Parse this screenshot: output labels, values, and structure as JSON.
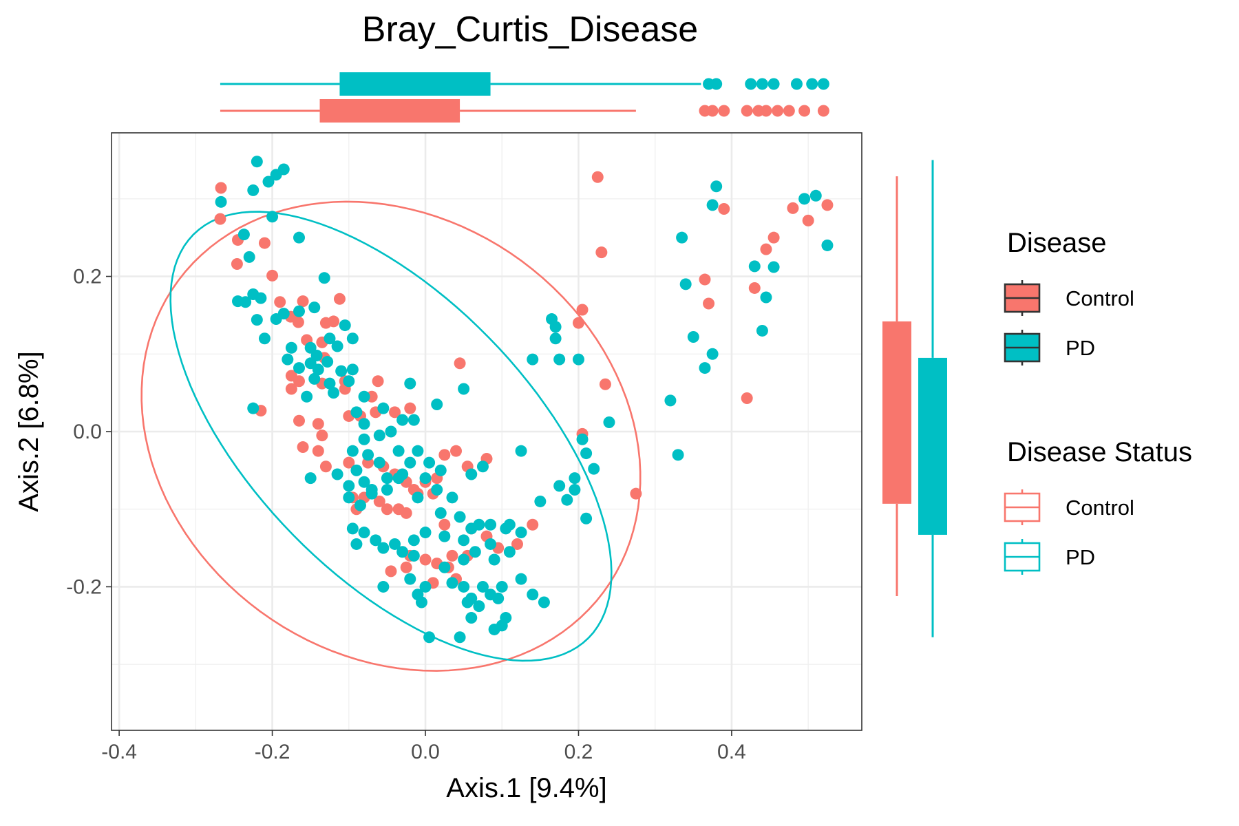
{
  "chart_data": {
    "type": "scatter",
    "title": "Bray_Curtis_Disease",
    "xlabel": "Axis.1   [9.4%]",
    "ylabel": "Axis.2   [6.8%]",
    "xlim": [
      -0.41,
      0.57
    ],
    "ylim": [
      -0.385,
      0.385
    ],
    "x_ticks": [
      -0.4,
      -0.2,
      0.0,
      0.2,
      0.4
    ],
    "x_tick_labels": [
      "-0.4",
      "-0.2",
      "0.0",
      "0.2",
      "0.4"
    ],
    "y_ticks": [
      -0.2,
      0.0,
      0.2
    ],
    "y_tick_labels": [
      "-0.2",
      "0.0",
      "0.2"
    ],
    "grid": true,
    "legend_position": "right",
    "legends": [
      {
        "title": "Disease",
        "style": "filled",
        "entries": [
          "Control",
          "PD"
        ]
      },
      {
        "title": "Disease Status",
        "style": "outline",
        "entries": [
          "Control",
          "PD"
        ]
      }
    ],
    "colors": {
      "Control": "#F8766D",
      "PD": "#00BFC4"
    },
    "series": [
      {
        "name": "Control",
        "color": "#F8766D",
        "points": [
          [
            -0.267,
            0.314
          ],
          [
            -0.268,
            0.274
          ],
          [
            -0.245,
            0.247
          ],
          [
            -0.246,
            0.216
          ],
          [
            -0.21,
            0.243
          ],
          [
            -0.2,
            0.201
          ],
          [
            -0.19,
            0.167
          ],
          [
            -0.16,
            0.168
          ],
          [
            -0.112,
            0.171
          ],
          [
            -0.176,
            0.148
          ],
          [
            -0.166,
            0.141
          ],
          [
            -0.13,
            0.14
          ],
          [
            -0.12,
            0.142
          ],
          [
            -0.155,
            0.118
          ],
          [
            -0.135,
            0.115
          ],
          [
            -0.132,
            0.095
          ],
          [
            -0.175,
            0.072
          ],
          [
            -0.165,
            0.065
          ],
          [
            -0.175,
            0.055
          ],
          [
            -0.135,
            0.062
          ],
          [
            -0.105,
            0.065
          ],
          [
            -0.062,
            0.065
          ],
          [
            -0.105,
            0.055
          ],
          [
            -0.07,
            0.045
          ],
          [
            -0.1,
            0.02
          ],
          [
            -0.085,
            0.02
          ],
          [
            -0.065,
            0.025
          ],
          [
            -0.04,
            0.025
          ],
          [
            -0.02,
            0.03
          ],
          [
            -0.215,
            0.027
          ],
          [
            -0.165,
            0.014
          ],
          [
            -0.14,
            0.01
          ],
          [
            -0.135,
            -0.005
          ],
          [
            -0.16,
            -0.02
          ],
          [
            -0.14,
            -0.025
          ],
          [
            -0.13,
            -0.045
          ],
          [
            -0.1,
            -0.04
          ],
          [
            -0.075,
            -0.04
          ],
          [
            -0.055,
            -0.045
          ],
          [
            -0.04,
            -0.055
          ],
          [
            -0.025,
            -0.065
          ],
          [
            -0.015,
            -0.075
          ],
          [
            0.0,
            -0.065
          ],
          [
            0.015,
            -0.06
          ],
          [
            0.025,
            -0.03
          ],
          [
            0.04,
            -0.025
          ],
          [
            0.055,
            -0.045
          ],
          [
            0.08,
            -0.035
          ],
          [
            -0.095,
            -0.085
          ],
          [
            -0.08,
            -0.085
          ],
          [
            -0.06,
            -0.09
          ],
          [
            -0.05,
            -0.1
          ],
          [
            -0.035,
            -0.1
          ],
          [
            -0.025,
            -0.105
          ],
          [
            -0.01,
            -0.08
          ],
          [
            0.01,
            -0.08
          ],
          [
            -0.09,
            -0.1
          ],
          [
            0.025,
            -0.12
          ],
          [
            0.06,
            -0.125
          ],
          [
            0.08,
            -0.135
          ],
          [
            0.12,
            -0.145
          ],
          [
            0.14,
            -0.12
          ],
          [
            0.095,
            -0.15
          ],
          [
            0.055,
            -0.16
          ],
          [
            0.035,
            -0.16
          ],
          [
            0.015,
            -0.17
          ],
          [
            0.0,
            -0.165
          ],
          [
            -0.02,
            -0.16
          ],
          [
            -0.045,
            -0.18
          ],
          [
            -0.025,
            -0.175
          ],
          [
            0.03,
            -0.175
          ],
          [
            0.01,
            -0.195
          ],
          [
            0.04,
            -0.19
          ],
          [
            0.045,
            0.088
          ],
          [
            0.205,
            0.157
          ],
          [
            0.2,
            0.14
          ],
          [
            0.225,
            0.328
          ],
          [
            0.23,
            0.231
          ],
          [
            0.235,
            0.061
          ],
          [
            0.205,
            -0.003
          ],
          [
            0.275,
            -0.08
          ],
          [
            0.365,
            0.196
          ],
          [
            0.37,
            0.165
          ],
          [
            0.39,
            0.287
          ],
          [
            0.42,
            0.043
          ],
          [
            0.43,
            0.185
          ],
          [
            0.445,
            0.235
          ],
          [
            0.455,
            0.25
          ],
          [
            0.48,
            0.288
          ],
          [
            0.5,
            0.272
          ],
          [
            0.525,
            0.292
          ]
        ]
      },
      {
        "name": "PD",
        "color": "#00BFC4",
        "points": [
          [
            -0.267,
            0.296
          ],
          [
            -0.237,
            0.254
          ],
          [
            -0.225,
            0.311
          ],
          [
            -0.22,
            0.348
          ],
          [
            -0.205,
            0.322
          ],
          [
            -0.195,
            0.331
          ],
          [
            -0.185,
            0.338
          ],
          [
            -0.2,
            0.277
          ],
          [
            -0.165,
            0.25
          ],
          [
            -0.23,
            0.225
          ],
          [
            -0.245,
            0.168
          ],
          [
            -0.235,
            0.167
          ],
          [
            -0.225,
            0.177
          ],
          [
            -0.215,
            0.172
          ],
          [
            -0.22,
            0.144
          ],
          [
            -0.21,
            0.12
          ],
          [
            -0.195,
            0.145
          ],
          [
            -0.185,
            0.152
          ],
          [
            -0.165,
            0.155
          ],
          [
            -0.145,
            0.16
          ],
          [
            -0.132,
            0.198
          ],
          [
            -0.175,
            0.108
          ],
          [
            -0.15,
            0.108
          ],
          [
            -0.142,
            0.098
          ],
          [
            -0.125,
            0.12
          ],
          [
            -0.105,
            0.137
          ],
          [
            -0.095,
            0.12
          ],
          [
            -0.15,
            0.088
          ],
          [
            -0.18,
            0.093
          ],
          [
            -0.165,
            0.082
          ],
          [
            -0.14,
            0.08
          ],
          [
            -0.128,
            0.09
          ],
          [
            -0.115,
            0.11
          ],
          [
            -0.125,
            0.062
          ],
          [
            -0.145,
            0.068
          ],
          [
            -0.155,
            0.045
          ],
          [
            -0.12,
            0.05
          ],
          [
            -0.11,
            0.078
          ],
          [
            -0.095,
            0.08
          ],
          [
            -0.1,
            0.065
          ],
          [
            -0.08,
            0.045
          ],
          [
            -0.09,
            0.025
          ],
          [
            -0.225,
            0.03
          ],
          [
            -0.08,
            0.01
          ],
          [
            -0.055,
            0.03
          ],
          [
            -0.03,
            0.015
          ],
          [
            -0.015,
            0.015
          ],
          [
            0.015,
            0.035
          ],
          [
            0.05,
            0.055
          ],
          [
            -0.02,
            0.062
          ],
          [
            -0.045,
            0.0
          ],
          [
            -0.06,
            -0.005
          ],
          [
            -0.08,
            -0.01
          ],
          [
            -0.095,
            -0.025
          ],
          [
            -0.075,
            -0.03
          ],
          [
            -0.06,
            -0.04
          ],
          [
            -0.035,
            -0.025
          ],
          [
            -0.01,
            -0.025
          ],
          [
            0.005,
            -0.04
          ],
          [
            0.02,
            -0.05
          ],
          [
            -0.15,
            -0.06
          ],
          [
            -0.115,
            -0.055
          ],
          [
            -0.09,
            -0.05
          ],
          [
            -0.1,
            -0.07
          ],
          [
            -0.08,
            -0.065
          ],
          [
            -0.07,
            -0.075
          ],
          [
            -0.05,
            -0.06
          ],
          [
            -0.03,
            -0.055
          ],
          [
            -0.02,
            -0.04
          ],
          [
            0.0,
            -0.06
          ],
          [
            0.015,
            -0.075
          ],
          [
            0.035,
            -0.085
          ],
          [
            0.06,
            -0.055
          ],
          [
            0.075,
            -0.045
          ],
          [
            0.125,
            -0.025
          ],
          [
            0.11,
            -0.12
          ],
          [
            0.125,
            -0.13
          ],
          [
            0.15,
            -0.09
          ],
          [
            0.175,
            -0.07
          ],
          [
            0.195,
            -0.075
          ],
          [
            0.21,
            -0.112
          ],
          [
            0.185,
            -0.088
          ],
          [
            0.195,
            -0.06
          ],
          [
            0.22,
            -0.048
          ],
          [
            0.21,
            -0.028
          ],
          [
            0.205,
            -0.01
          ],
          [
            0.24,
            0.012
          ],
          [
            0.2,
            0.093
          ],
          [
            0.17,
            0.12
          ],
          [
            0.17,
            0.135
          ],
          [
            0.165,
            0.145
          ],
          [
            0.14,
            0.093
          ],
          [
            0.175,
            0.093
          ],
          [
            0.32,
            0.04
          ],
          [
            0.33,
            -0.03
          ],
          [
            0.335,
            0.25
          ],
          [
            0.34,
            0.19
          ],
          [
            0.35,
            0.122
          ],
          [
            0.365,
            0.082
          ],
          [
            0.375,
            0.1
          ],
          [
            0.375,
            0.292
          ],
          [
            0.38,
            0.316
          ],
          [
            0.43,
            0.213
          ],
          [
            0.44,
            0.13
          ],
          [
            0.445,
            0.173
          ],
          [
            0.455,
            0.212
          ],
          [
            0.495,
            0.3
          ],
          [
            0.51,
            0.304
          ],
          [
            0.525,
            0.24
          ],
          [
            -0.1,
            -0.085
          ],
          [
            -0.085,
            -0.095
          ],
          [
            -0.07,
            -0.08
          ],
          [
            -0.05,
            -0.075
          ],
          [
            -0.035,
            -0.06
          ],
          [
            -0.01,
            -0.085
          ],
          [
            0.02,
            -0.105
          ],
          [
            0.045,
            -0.11
          ],
          [
            0.06,
            -0.125
          ],
          [
            -0.095,
            -0.125
          ],
          [
            -0.08,
            -0.13
          ],
          [
            -0.065,
            -0.14
          ],
          [
            -0.09,
            -0.145
          ],
          [
            -0.055,
            -0.15
          ],
          [
            -0.04,
            -0.145
          ],
          [
            -0.015,
            -0.14
          ],
          [
            0.0,
            -0.13
          ],
          [
            0.025,
            -0.135
          ],
          [
            0.05,
            -0.14
          ],
          [
            0.07,
            -0.12
          ],
          [
            0.085,
            -0.12
          ],
          [
            0.105,
            -0.125
          ],
          [
            0.085,
            -0.145
          ],
          [
            0.09,
            -0.165
          ],
          [
            0.11,
            -0.155
          ],
          [
            0.125,
            -0.19
          ],
          [
            0.14,
            -0.21
          ],
          [
            0.155,
            -0.22
          ],
          [
            0.1,
            -0.2
          ],
          [
            0.095,
            -0.215
          ],
          [
            0.075,
            -0.2
          ],
          [
            0.06,
            -0.215
          ],
          [
            0.05,
            -0.2
          ],
          [
            0.035,
            -0.195
          ],
          [
            0.025,
            -0.175
          ],
          [
            0.05,
            -0.165
          ],
          [
            0.065,
            -0.155
          ],
          [
            -0.015,
            -0.16
          ],
          [
            -0.03,
            -0.155
          ],
          [
            -0.055,
            -0.2
          ],
          [
            0.0,
            -0.2
          ],
          [
            -0.005,
            -0.22
          ],
          [
            0.055,
            -0.22
          ],
          [
            0.07,
            -0.225
          ],
          [
            0.085,
            -0.21
          ],
          [
            0.105,
            -0.24
          ],
          [
            0.09,
            -0.255
          ],
          [
            0.1,
            -0.25
          ],
          [
            0.06,
            -0.24
          ],
          [
            0.045,
            -0.265
          ],
          [
            0.005,
            -0.265
          ],
          [
            -0.01,
            -0.21
          ],
          [
            -0.02,
            -0.19
          ]
        ]
      }
    ],
    "ellipses": [
      {
        "name": "Control",
        "color": "#F8766D",
        "center": [
          -0.045,
          -0.006
        ],
        "ux": [
          0.286,
          -0.189
        ],
        "uy": [
          0.156,
          0.236
        ]
      },
      {
        "name": "PD",
        "color": "#00BFC4",
        "center": [
          -0.045,
          -0.006
        ],
        "ux": [
          0.258,
          -0.26
        ],
        "uy": [
          0.128,
          0.127
        ]
      }
    ],
    "marginal_x": [
      {
        "name": "PD",
        "color": "#00BFC4",
        "whisker_low": -0.268,
        "q1": -0.112,
        "q3": 0.085,
        "whisker_high": 0.36,
        "outliers": [
          0.37,
          0.38,
          0.425,
          0.44,
          0.455,
          0.485,
          0.505,
          0.52
        ]
      },
      {
        "name": "Control",
        "color": "#F8766D",
        "whisker_low": -0.268,
        "q1": -0.138,
        "q3": 0.045,
        "whisker_high": 0.275,
        "outliers": [
          0.365,
          0.375,
          0.39,
          0.42,
          0.435,
          0.445,
          0.46,
          0.475,
          0.495,
          0.52
        ]
      }
    ],
    "marginal_y": [
      {
        "name": "Control",
        "color": "#F8766D",
        "whisker_low": -0.212,
        "q1": -0.093,
        "q3": 0.142,
        "whisker_high": 0.329
      },
      {
        "name": "PD",
        "color": "#00BFC4",
        "whisker_low": -0.265,
        "q1": -0.133,
        "q3": 0.095,
        "whisker_high": 0.35
      }
    ]
  }
}
